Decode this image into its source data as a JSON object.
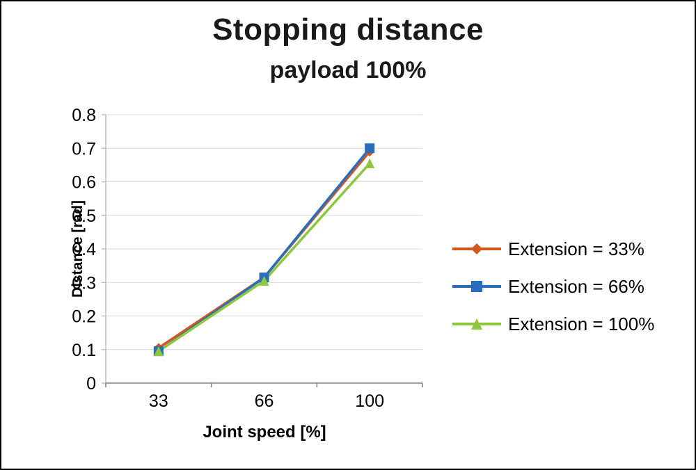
{
  "chart_data": {
    "type": "line",
    "title": "Stopping distance",
    "subtitle": "payload 100%",
    "xlabel": "Joint speed [%]",
    "ylabel": "Distance [rad]",
    "categories": [
      "33",
      "66",
      "100"
    ],
    "series": [
      {
        "name": "Extension = 33%",
        "color": "#d4571e",
        "marker": "diamond",
        "values": [
          0.105,
          0.315,
          0.69
        ]
      },
      {
        "name": "Extension = 66%",
        "color": "#2a6ebb",
        "marker": "square",
        "values": [
          0.095,
          0.315,
          0.7
        ]
      },
      {
        "name": "Extension = 100%",
        "color": "#8dc63f",
        "marker": "triangle",
        "values": [
          0.095,
          0.305,
          0.655
        ]
      }
    ],
    "ylim": [
      0,
      0.8
    ],
    "yticks": [
      "0",
      "0.1",
      "0.2",
      "0.3",
      "0.4",
      "0.5",
      "0.6",
      "0.7",
      "0.8"
    ],
    "grid": true,
    "legend_position": "right",
    "colors": {
      "gridline": "#d9d9d9",
      "y_axis": "#bfbfbf",
      "x_axis": "#808080",
      "text": "#000000"
    }
  }
}
